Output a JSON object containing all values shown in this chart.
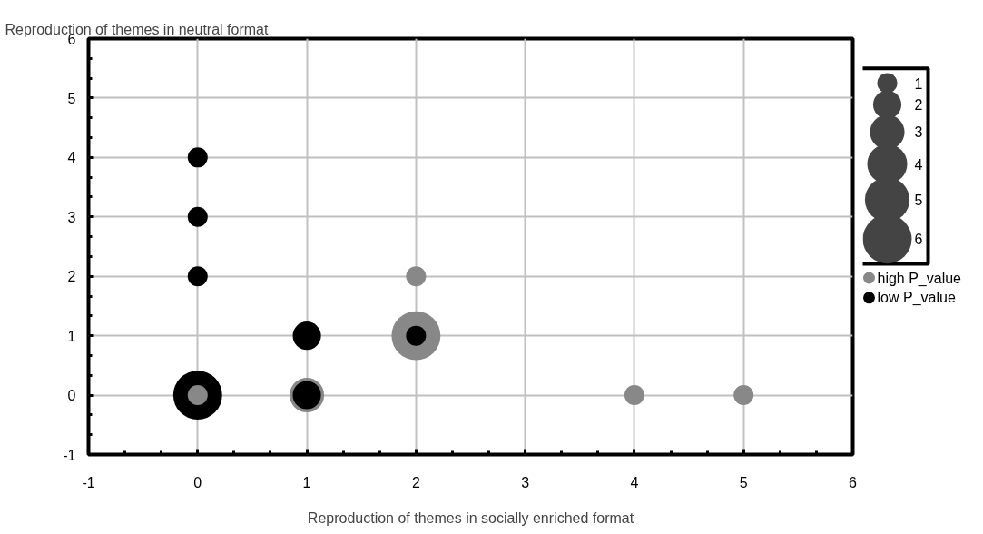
{
  "chart_data": {
    "type": "bubble",
    "xlabel": "Reproduction of themes in socially enriched format",
    "ylabel": "Reproduction of themes in neutral format",
    "xlim": [
      -1,
      6
    ],
    "ylim": [
      -1,
      6
    ],
    "xticks": [
      -1,
      0,
      1,
      2,
      3,
      4,
      5,
      6
    ],
    "yticks": [
      -1,
      0,
      1,
      2,
      3,
      4,
      5,
      6
    ],
    "grid": true,
    "legend": "right",
    "size_legend": [
      1,
      2,
      3,
      4,
      5,
      6
    ],
    "series": [
      {
        "name": "high P_value",
        "color": "#888888",
        "x": [
          0,
          1,
          2,
          2,
          4,
          5
        ],
        "values": [
          0,
          0,
          1,
          2,
          0,
          0
        ],
        "sizes": [
          1,
          3,
          6,
          1,
          1,
          1
        ]
      },
      {
        "name": "low P_value",
        "color": "#000000",
        "x": [
          0,
          0,
          0,
          0,
          1,
          1,
          2
        ],
        "values": [
          0,
          2,
          3,
          4,
          0,
          1,
          1
        ],
        "sizes": [
          6,
          1,
          1,
          1,
          2,
          2,
          1
        ]
      }
    ]
  }
}
